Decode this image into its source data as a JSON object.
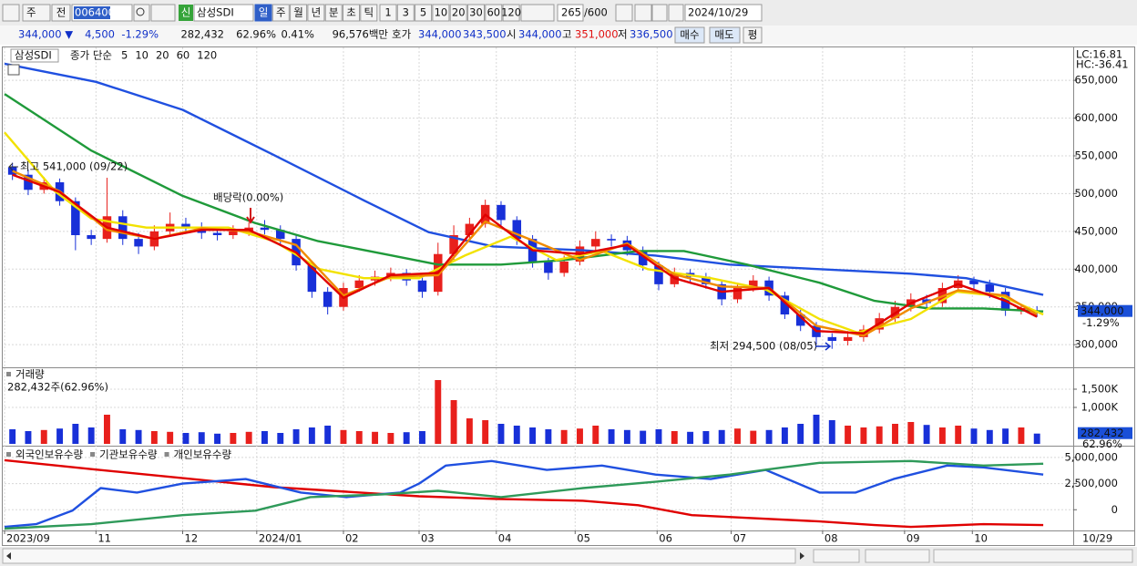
{
  "toolbar": {
    "market": "주",
    "all": "전",
    "code": "006400",
    "new_badge": "신",
    "name": "삼성SDI",
    "periods": [
      "일",
      "주",
      "월",
      "년",
      "분",
      "초",
      "틱"
    ],
    "intervals": [
      "1",
      "3",
      "5",
      "10",
      "20",
      "30",
      "60",
      "120"
    ],
    "count": "265",
    "max": "/600",
    "date": "2024/10/29"
  },
  "info": {
    "price": "344,000 ▼",
    "change": "4,500",
    "change_rate": "-1.29%",
    "volume": "282,432",
    "volume_rate": "62.96%",
    "turnover": "0.41%",
    "amount": "96,576백만",
    "quote_label": "호가",
    "ask": "344,000",
    "bid": "343,500",
    "open_label": "시",
    "open": "344,000",
    "high_label": "고",
    "high": "351,000",
    "low_label": "저",
    "low": "336,500",
    "buy": "매수",
    "sell": "매도",
    "avg": "평"
  },
  "chart_data": [
    {
      "type": "candlestick",
      "name": "삼성SDI",
      "legend_prefix": "종가 단순",
      "xlim": [
        0,
        67.8
      ],
      "ylim": [
        270000,
        690000
      ],
      "yticks": [
        {
          "value": 300000,
          "label": "300,000"
        },
        {
          "value": 350000,
          "label": "350,000"
        },
        {
          "value": 400000,
          "label": "400,000"
        },
        {
          "value": 450000,
          "label": "450,000"
        },
        {
          "value": 500000,
          "label": "500,000"
        },
        {
          "value": 550000,
          "label": "550,000"
        },
        {
          "value": 600000,
          "label": "600,000"
        },
        {
          "value": 650000,
          "label": "650,000"
        }
      ],
      "grid": true,
      "up_color": "#e8201c",
      "down_color": "#1830d8",
      "open": [
        535000,
        525000,
        505000,
        515000,
        490000,
        445000,
        440000,
        470000,
        440000,
        430000,
        450000,
        460000,
        455000,
        448000,
        445000,
        450000,
        455000,
        452000,
        440000,
        405000,
        370000,
        350000,
        375000,
        385000,
        390000,
        395000,
        385000,
        370000,
        420000,
        445000,
        460000,
        485000,
        465000,
        440000,
        410000,
        395000,
        410000,
        430000,
        440000,
        438000,
        425000,
        405000,
        380000,
        395000,
        390000,
        380000,
        360000,
        375000,
        385000,
        365000,
        340000,
        325000,
        310000,
        305000,
        310000,
        320000,
        335000,
        350000,
        360000,
        355000,
        375000,
        385000,
        380000,
        370000,
        345000,
        345000
      ],
      "high": [
        541000,
        532000,
        522000,
        520000,
        495000,
        452000,
        521000,
        478000,
        448000,
        458000,
        475000,
        468000,
        462000,
        456000,
        458000,
        462000,
        465000,
        458000,
        446000,
        410000,
        376000,
        382000,
        392000,
        398000,
        402000,
        400000,
        390000,
        435000,
        458000,
        468000,
        492000,
        490000,
        470000,
        445000,
        415000,
        418000,
        438000,
        450000,
        446000,
        444000,
        430000,
        410000,
        402000,
        400000,
        395000,
        385000,
        382000,
        392000,
        390000,
        370000,
        346000,
        330000,
        315000,
        318000,
        326000,
        342000,
        358000,
        368000,
        366000,
        382000,
        392000,
        390000,
        386000,
        375000,
        352000,
        351000
      ],
      "low": [
        518000,
        498000,
        500000,
        484000,
        425000,
        432000,
        435000,
        432000,
        420000,
        425000,
        445000,
        448000,
        440000,
        438000,
        440000,
        444000,
        446000,
        432000,
        398000,
        362000,
        340000,
        345000,
        370000,
        378000,
        384000,
        378000,
        362000,
        365000,
        412000,
        438000,
        455000,
        458000,
        432000,
        402000,
        386000,
        390000,
        405000,
        425000,
        430000,
        418000,
        398000,
        372000,
        376000,
        383000,
        374000,
        352000,
        355000,
        370000,
        358000,
        334000,
        318000,
        300000,
        294500,
        299000,
        304000,
        315000,
        330000,
        344000,
        348000,
        350000,
        370000,
        372000,
        362000,
        338000,
        340000,
        336500
      ],
      "close": [
        525000,
        505000,
        515000,
        490000,
        445000,
        440000,
        470000,
        440000,
        430000,
        450000,
        460000,
        455000,
        448000,
        445000,
        450000,
        455000,
        452000,
        440000,
        405000,
        370000,
        350000,
        375000,
        385000,
        390000,
        395000,
        385000,
        370000,
        420000,
        445000,
        460000,
        485000,
        465000,
        440000,
        410000,
        395000,
        410000,
        430000,
        440000,
        438000,
        425000,
        405000,
        380000,
        395000,
        390000,
        380000,
        360000,
        375000,
        385000,
        365000,
        340000,
        325000,
        310000,
        305000,
        310000,
        320000,
        335000,
        350000,
        360000,
        355000,
        375000,
        385000,
        380000,
        370000,
        345000,
        348500,
        344000
      ],
      "series": [
        {
          "name": "120",
          "color": "#2050e0",
          "x": [
            0,
            5.8,
            11.3,
            17.1,
            22.8,
            26.9,
            31.0,
            36.7,
            41.3,
            46.0,
            51.7,
            57.5,
            61.0,
            65.9
          ],
          "values": [
            672000,
            648000,
            611000,
            551000,
            491000,
            449000,
            430000,
            425000,
            418000,
            406000,
            400000,
            394000,
            388000,
            366000
          ]
        },
        {
          "name": "60",
          "color": "#1f9a3a",
          "x": [
            0,
            5.5,
            11.3,
            15.9,
            19.9,
            24.6,
            27.5,
            31.5,
            35.5,
            40.2,
            43.1,
            47.1,
            51.7,
            55.2,
            58.6,
            62.1,
            65.9
          ],
          "values": [
            632000,
            557000,
            497000,
            461000,
            437000,
            418000,
            406000,
            406000,
            412000,
            424000,
            424000,
            406000,
            382000,
            358000,
            348000,
            348000,
            344000
          ]
        },
        {
          "name": "20",
          "color": "#f2e200",
          "x": [
            0,
            3.2,
            5.5,
            9.0,
            14.2,
            17.1,
            20.0,
            22.8,
            26.3,
            29.2,
            32.1,
            35.0,
            37.9,
            40.8,
            44.8,
            48.3,
            51.7,
            54.1,
            57.5,
            60.4,
            63.3,
            65.9
          ],
          "values": [
            581000,
            503000,
            467000,
            455000,
            455000,
            437000,
            400000,
            388000,
            388000,
            418000,
            443000,
            412000,
            424000,
            400000,
            388000,
            373000,
            334000,
            316000,
            334000,
            370000,
            364000,
            340000
          ]
        },
        {
          "name": "10",
          "color": "#f08a00",
          "x": [
            0.5,
            3.5,
            6.5,
            9.5,
            12.5,
            15.5,
            18.5,
            21.5,
            24.5,
            27.5,
            30.5,
            33.5,
            36.5,
            39.5,
            42.5,
            45.5,
            48.5,
            51.5,
            54.5,
            57.5,
            60.5,
            63.5,
            65.5
          ],
          "values": [
            530000,
            503000,
            452000,
            440000,
            454000,
            450000,
            432000,
            365000,
            390000,
            392000,
            463000,
            438000,
            412000,
            434000,
            393000,
            377000,
            375000,
            325000,
            312000,
            348000,
            372000,
            365000,
            340000
          ]
        },
        {
          "name": "5",
          "color": "#e00000",
          "x": [
            0.5,
            3.5,
            6.5,
            9.5,
            12.5,
            15.5,
            18.5,
            21.5,
            24.5,
            27.5,
            30.5,
            33.5,
            36.5,
            39.5,
            42.5,
            45.5,
            48.5,
            51.5,
            54.5,
            57.5,
            60.5,
            63.5,
            65.5
          ],
          "values": [
            525000,
            502000,
            455000,
            440000,
            452000,
            452000,
            422000,
            362000,
            392000,
            395000,
            472000,
            425000,
            420000,
            432000,
            388000,
            370000,
            375000,
            318000,
            315000,
            355000,
            380000,
            358000,
            337000
          ]
        }
      ],
      "annotations": [
        "최고 541,000 (09/22)",
        "배당락(0.00%)",
        "최저 294,500 (08/05)"
      ],
      "indicator_lc": "LC:16.81",
      "indicator_hc": "HC:-36.41",
      "last_price_label": "344,000",
      "last_change_label": "-1.29%"
    },
    {
      "type": "bar",
      "title": "거래량",
      "subtitle": "282,432주(62.96%)",
      "xlim": [
        0,
        67.8
      ],
      "ylim": [
        0,
        2050000
      ],
      "yticks": [
        {
          "value": 1000000,
          "label": "1,000K"
        },
        {
          "value": 1500000,
          "label": "1,500K"
        }
      ],
      "values": [
        400000,
        350000,
        380000,
        420000,
        550000,
        450000,
        800000,
        400000,
        380000,
        350000,
        330000,
        300000,
        320000,
        280000,
        300000,
        330000,
        350000,
        300000,
        400000,
        450000,
        500000,
        380000,
        350000,
        330000,
        300000,
        320000,
        350000,
        1750000,
        1200000,
        700000,
        650000,
        550000,
        500000,
        450000,
        400000,
        380000,
        420000,
        500000,
        400000,
        380000,
        360000,
        400000,
        350000,
        330000,
        350000,
        380000,
        420000,
        360000,
        380000,
        450000,
        550000,
        800000,
        650000,
        500000,
        450000,
        480000,
        550000,
        600000,
        520000,
        450000,
        500000,
        420000,
        380000,
        420000,
        450000,
        282432
      ],
      "last_value_label": "282,432",
      "last_rate_label": "62.96%"
    },
    {
      "type": "line",
      "xlim": [
        0,
        67.8
      ],
      "ylim": [
        -1980000,
        5860000
      ],
      "yticks": [
        0,
        {
          "value": 2500000,
          "label": "2,500,000"
        },
        {
          "value": 5000000,
          "label": "5,000,000"
        }
      ],
      "series": [
        {
          "name": "외국인보유수량",
          "color": "#e00000",
          "x": [
            0,
            5.5,
            11.3,
            17.1,
            21.7,
            26.3,
            31.2,
            36.7,
            40.2,
            43.6,
            47.1,
            51.7,
            55.2,
            57.5,
            62.1,
            65.9
          ],
          "values": [
            4740000,
            3880000,
            3020000,
            2160000,
            1720000,
            1290000,
            1030000,
            860000,
            430000,
            -520000,
            -780000,
            -1120000,
            -1470000,
            -1640000,
            -1380000,
            -1470000
          ]
        },
        {
          "name": "기관보유수량",
          "color": "#2050e0",
          "x": [
            0,
            2.0,
            4.3,
            6.1,
            8.4,
            11.3,
            15.3,
            18.8,
            21.7,
            25.1,
            26.3,
            28.0,
            30.9,
            34.4,
            37.9,
            41.3,
            44.8,
            48.3,
            51.7,
            54.0,
            56.4,
            59.8,
            62.1,
            65.9
          ],
          "values": [
            -1640000,
            -1380000,
            -90000,
            2070000,
            1640000,
            2500000,
            2930000,
            1640000,
            1210000,
            1640000,
            2500000,
            4220000,
            4660000,
            3800000,
            4220000,
            3360000,
            2930000,
            3800000,
            1640000,
            1640000,
            2930000,
            4220000,
            4050000,
            3360000
          ]
        },
        {
          "name": "개인보유수량",
          "color": "#2f9a5a",
          "x": [
            0,
            5.5,
            11.3,
            15.9,
            19.4,
            24.0,
            27.5,
            31.5,
            36.7,
            41.3,
            46.0,
            49.4,
            51.7,
            57.5,
            62.1,
            65.9
          ],
          "values": [
            -1810000,
            -1380000,
            -520000,
            -90000,
            1210000,
            1470000,
            1810000,
            1210000,
            2070000,
            2670000,
            3360000,
            4050000,
            4480000,
            4660000,
            4220000,
            4400000
          ]
        }
      ],
      "xticks": [
        {
          "value": 0,
          "label": "2023/09"
        },
        {
          "value": 5.8,
          "label": "11"
        },
        {
          "value": 11.3,
          "label": "12"
        },
        {
          "value": 16.0,
          "label": "2024/01"
        },
        {
          "value": 21.5,
          "label": "02"
        },
        {
          "value": 26.3,
          "label": "03"
        },
        {
          "value": 31.2,
          "label": "04"
        },
        {
          "value": 36.2,
          "label": "05"
        },
        {
          "value": 41.4,
          "label": "06"
        },
        {
          "value": 46.1,
          "label": "07"
        },
        {
          "value": 51.9,
          "label": "08"
        },
        {
          "value": 57.1,
          "label": "09"
        },
        {
          "value": 61.4,
          "label": "10"
        }
      ],
      "x_end_label": "10/29"
    }
  ]
}
